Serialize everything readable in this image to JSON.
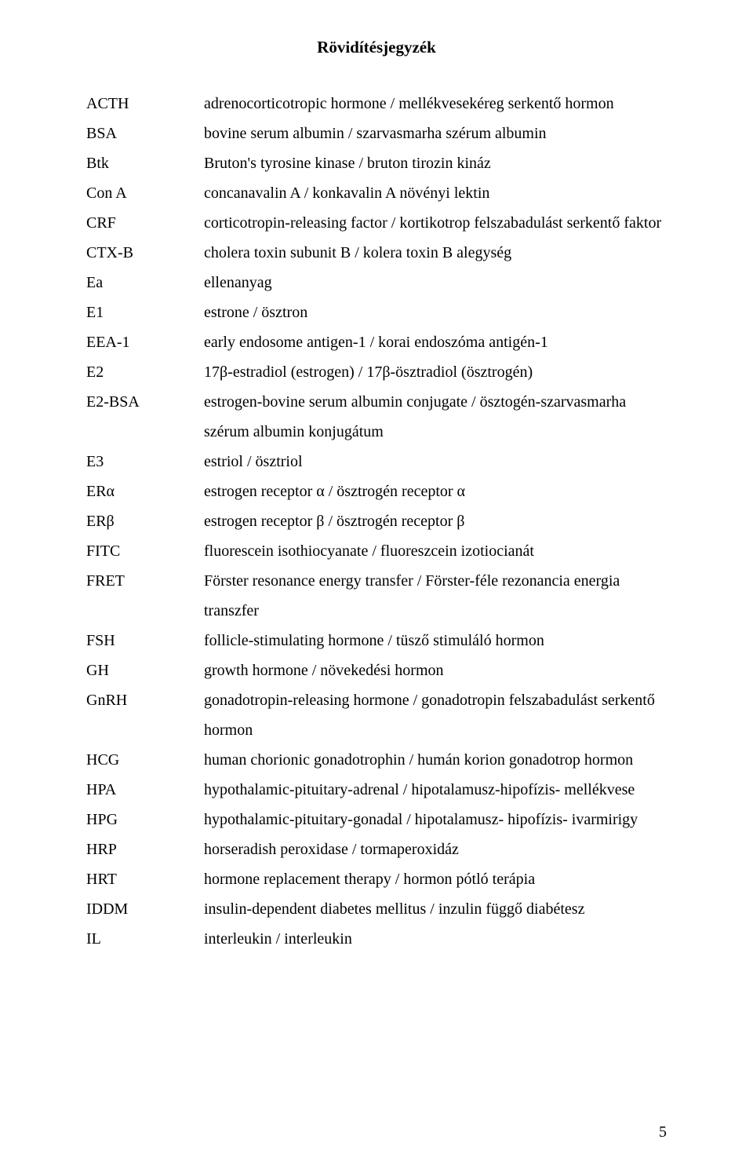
{
  "title": "Rövidítésjegyzék",
  "page_number": "5",
  "entries": [
    {
      "abbr": "ACTH",
      "desc": "adrenocorticotropic hormone / mellékvesekéreg serkentő hormon"
    },
    {
      "abbr": "BSA",
      "desc": "bovine serum albumin / szarvasmarha szérum albumin"
    },
    {
      "abbr": "Btk",
      "desc": "Bruton's tyrosine kinase / bruton tirozin kináz"
    },
    {
      "abbr": "Con A",
      "desc": "concanavalin A / konkavalin A növényi lektin"
    },
    {
      "abbr": "CRF",
      "desc": "corticotropin-releasing factor / kortikotrop felszabadulást serkentő faktor"
    },
    {
      "abbr": "CTX-B",
      "desc": "cholera toxin subunit B / kolera toxin B alegység"
    },
    {
      "abbr": "Ea",
      "desc": "ellenanyag"
    },
    {
      "abbr": "E1",
      "desc": "estrone / ösztron"
    },
    {
      "abbr": "EEA-1",
      "desc": "early endosome antigen-1 / korai endoszóma antigén-1"
    },
    {
      "abbr": "E2",
      "desc": "17β-estradiol (estrogen) / 17β-ösztradiol (ösztrogén)"
    },
    {
      "abbr": "E2-BSA",
      "desc": "estrogen-bovine serum albumin conjugate / ösztogén-szarvasmarha szérum albumin konjugátum"
    },
    {
      "abbr": "E3",
      "desc": "estriol / ösztriol"
    },
    {
      "abbr": "ERα",
      "desc": "estrogen receptor α / ösztrogén receptor α"
    },
    {
      "abbr": "ERβ",
      "desc": "estrogen receptor β / ösztrogén receptor β"
    },
    {
      "abbr": "FITC",
      "desc": "fluorescein isothiocyanate / fluoreszcein izotiocianát"
    },
    {
      "abbr": "FRET",
      "desc": "Förster resonance energy transfer / Förster-féle rezonancia energia transzfer"
    },
    {
      "abbr": "FSH",
      "desc": "follicle-stimulating hormone / tüsző stimuláló hormon"
    },
    {
      "abbr": "GH",
      "desc": "growth hormone / növekedési hormon"
    },
    {
      "abbr": "GnRH",
      "desc": "gonadotropin-releasing hormone / gonadotropin felszabadulást serkentő hormon"
    },
    {
      "abbr": "HCG",
      "desc": "human chorionic gonadotrophin / humán korion gonadotrop hormon"
    },
    {
      "abbr": "HPA",
      "desc": "hypothalamic-pituitary-adrenal / hipotalamusz-hipofízis- mellékvese"
    },
    {
      "abbr": "HPG",
      "desc": "hypothalamic-pituitary-gonadal / hipotalamusz- hipofízis- ivarmirigy"
    },
    {
      "abbr": "HRP",
      "desc": "horseradish peroxidase / tormaperoxidáz"
    },
    {
      "abbr": "HRT",
      "desc": "hormone replacement therapy / hormon pótló terápia"
    },
    {
      "abbr": "IDDM",
      "desc": "insulin-dependent diabetes mellitus / inzulin függő diabétesz"
    },
    {
      "abbr": "IL",
      "desc": "interleukin / interleukin"
    }
  ]
}
